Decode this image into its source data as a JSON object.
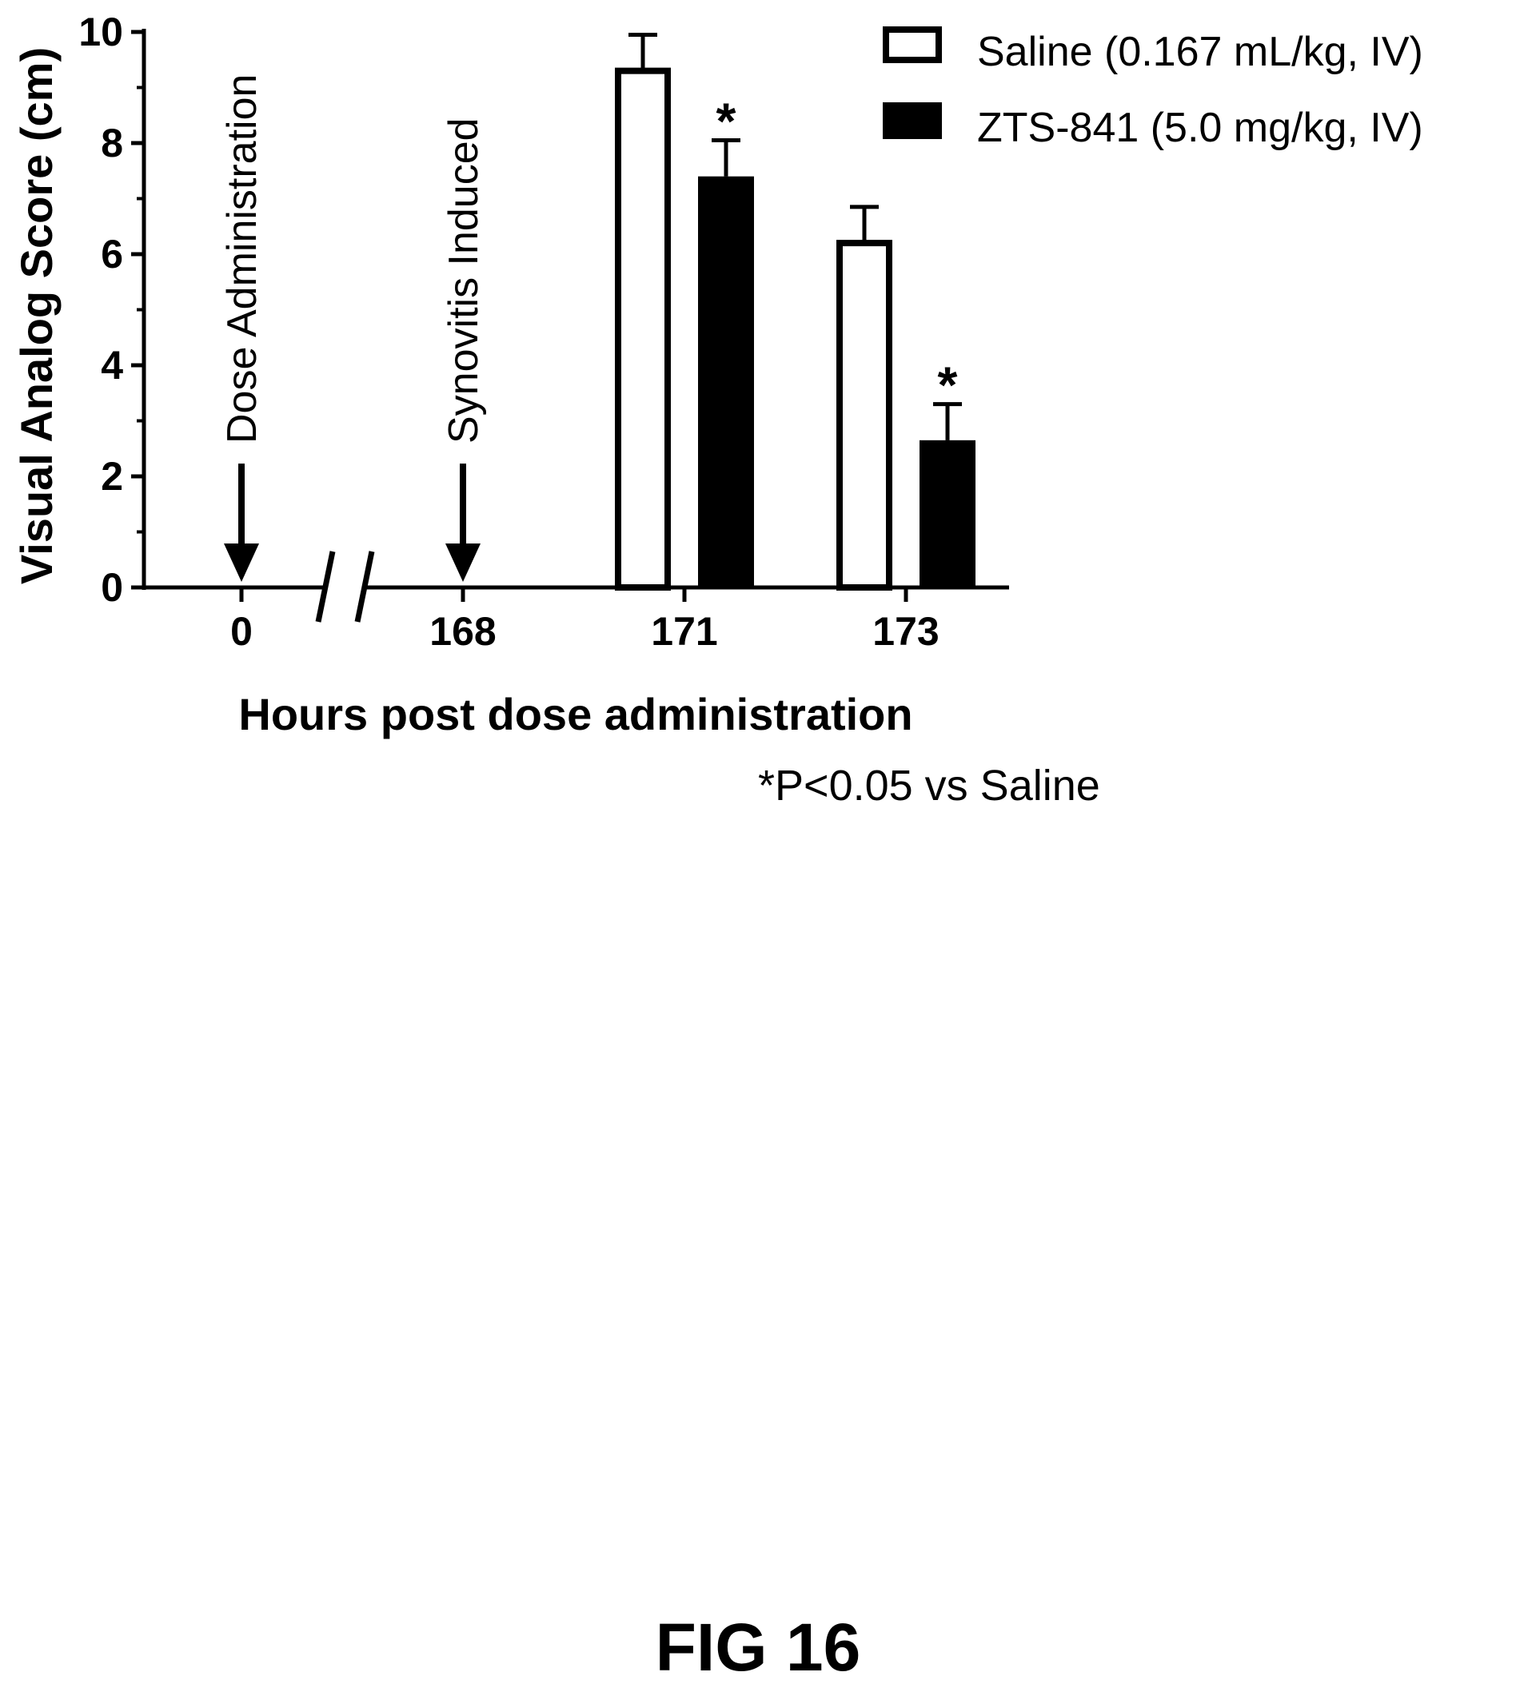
{
  "chart_data": {
    "type": "bar",
    "ylabel": "Visual  Analog  Score (cm)",
    "xlabel": "Hours post dose administration",
    "ylim": [
      0,
      10
    ],
    "yticks": [
      0,
      2,
      4,
      6,
      8,
      10
    ],
    "categories": [
      "0",
      "168",
      "171",
      "173"
    ],
    "axis_break": "between 0 and 168",
    "series": [
      {
        "name": "Saline (0.167 mL/kg, IV)",
        "style": "hollow",
        "values": [
          null,
          null,
          9.3,
          6.2
        ],
        "errors": [
          null,
          null,
          0.65,
          0.65
        ]
      },
      {
        "name": "ZTS-841 (5.0 mg/kg,  IV)",
        "style": "solid",
        "values": [
          null,
          null,
          7.4,
          2.65
        ],
        "errors": [
          null,
          null,
          0.65,
          0.65
        ]
      }
    ],
    "significance_marks": [
      {
        "category": "171",
        "series": "ZTS-841 (5.0 mg/kg,  IV)",
        "text": "*"
      },
      {
        "category": "173",
        "series": "ZTS-841 (5.0 mg/kg,  IV)",
        "text": "*"
      }
    ],
    "event_markers": [
      {
        "category": "0",
        "label": "Dose Administration"
      },
      {
        "category": "168",
        "label": "Synovitis Induced"
      }
    ],
    "legend_position": "top-right",
    "footnote": "*P<0.05 vs Saline"
  },
  "figure_label": "FIG 16",
  "colors": {
    "ink": "#000000",
    "background": "#ffffff"
  }
}
